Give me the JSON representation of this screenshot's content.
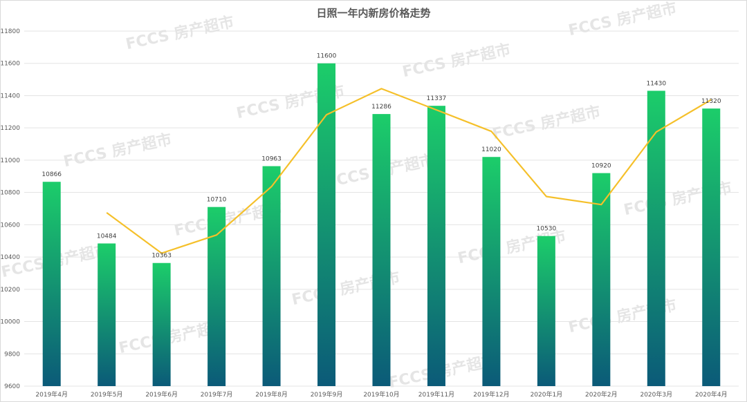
{
  "watermark": "FCCS 房产超市",
  "chart_data": {
    "type": "bar",
    "title": "日照一年内新房价格走势",
    "categories": [
      "2019年4月",
      "2019年5月",
      "2019年6月",
      "2019年7月",
      "2019年8月",
      "2019年9月",
      "2019年10月",
      "2019年11月",
      "2019年12月",
      "2020年1月",
      "2020年2月",
      "2020年3月",
      "2020年4月"
    ],
    "series": [
      {
        "type": "bar",
        "values": [
          10866,
          10484,
          10363,
          10710,
          10963,
          11600,
          11286,
          11337,
          11020,
          10530,
          10920,
          11430,
          11320
        ],
        "color_top": "#1ccd6a",
        "color_bottom": "#0b5a78"
      },
      {
        "type": "line",
        "values": [
          null,
          10675,
          10423.5,
          10536.5,
          10836.5,
          11281.5,
          11443,
          11311.5,
          11178.5,
          10775,
          10725,
          11175,
          11375
        ],
        "color": "#f5c02a"
      }
    ],
    "ylim": [
      9600,
      11800
    ],
    "yticks": [
      9600,
      9800,
      10000,
      10200,
      10400,
      10600,
      10800,
      11000,
      11200,
      11400,
      11600,
      11800
    ],
    "grid": true,
    "legend": "none"
  }
}
